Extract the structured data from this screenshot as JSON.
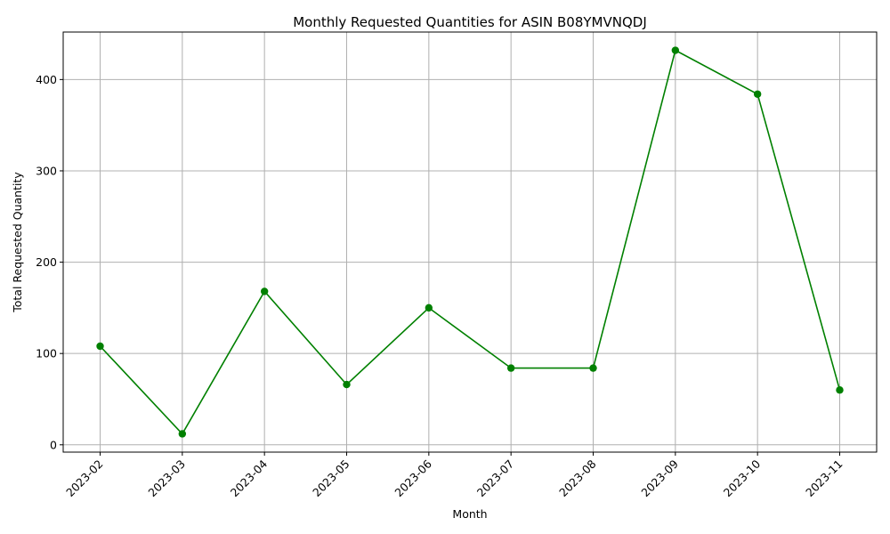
{
  "chart_data": {
    "type": "line",
    "title": "Monthly Requested Quantities for ASIN B08YMVNQDJ",
    "xlabel": "Month",
    "ylabel": "Total Requested Quantity",
    "categories": [
      "2023-02",
      "2023-03",
      "2023-04",
      "2023-05",
      "2023-06",
      "2023-07",
      "2023-08",
      "2023-09",
      "2023-10",
      "2023-11"
    ],
    "series": [
      {
        "values": [
          108,
          12,
          168,
          66,
          150,
          84,
          84,
          432,
          384,
          60
        ],
        "color": "#008000",
        "marker": "circle"
      }
    ],
    "ylim": [
      -8,
      452
    ],
    "yticks": [
      0,
      100,
      200,
      300,
      400
    ],
    "grid": true,
    "x_tick_rotation": 45
  }
}
